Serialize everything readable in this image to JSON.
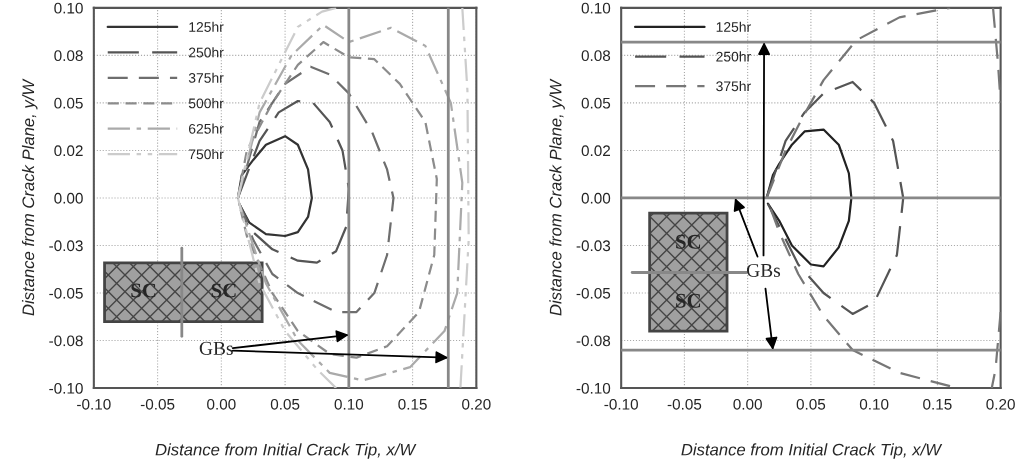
{
  "chart_data": [
    {
      "type": "line",
      "xlabel": "Distance from Initial Crack Tip, x/W",
      "ylabel": "Distance from Crack Plane, y/W",
      "xlim": [
        -0.1,
        0.2
      ],
      "xticks": [
        {
          "value": -0.1,
          "label": "-0.10"
        },
        {
          "value": -0.05,
          "label": "-0.05"
        },
        {
          "value": 0,
          "label": "0.00"
        },
        {
          "value": 0.05,
          "label": "0.05"
        },
        {
          "value": 0.1,
          "label": "0.10"
        },
        {
          "value": 0.15,
          "label": "0.15"
        },
        {
          "value": 0.2,
          "label": "0.20"
        }
      ],
      "ylim": [
        -0.1,
        0.1
      ],
      "yticks": [
        {
          "value": -0.1,
          "label": "-0.10"
        },
        {
          "value": -0.075,
          "label": "-0.08"
        },
        {
          "value": -0.05,
          "label": "-0.05"
        },
        {
          "value": -0.025,
          "label": "-0.03"
        },
        {
          "value": 0,
          "label": "0.00"
        },
        {
          "value": 0.025,
          "label": "0.02"
        },
        {
          "value": 0.05,
          "label": "0.05"
        },
        {
          "value": 0.075,
          "label": "0.08"
        },
        {
          "value": 0.1,
          "label": "0.10"
        }
      ],
      "grid": true,
      "legend": "top left",
      "series": [
        {
          "name": "125hr",
          "color": "#333333",
          "line_style": "solid",
          "x": [
            0.013,
            0.016,
            0.025,
            0.035,
            0.05,
            0.06,
            0.068,
            0.071,
            0.068,
            0.06,
            0.05,
            0.035,
            0.022,
            0.014
          ],
          "values": [
            0,
            0.012,
            0.02,
            0.028,
            0.0325,
            0.028,
            0.015,
            0,
            -0.01,
            -0.018,
            -0.02,
            -0.019,
            -0.013,
            -0.003
          ]
        },
        {
          "name": "250hr",
          "color": "#555555",
          "line_style": "dashed",
          "x": [
            0.013,
            0.03,
            0.045,
            0.06,
            0.072,
            0.085,
            0.095,
            0.1,
            0.098,
            0.09,
            0.075,
            0.06,
            0.04,
            0.025,
            0.014
          ],
          "values": [
            0,
            0.03,
            0.045,
            0.051,
            0.05,
            0.04,
            0.025,
            0.005,
            -0.015,
            -0.028,
            -0.034,
            -0.033,
            -0.027,
            -0.018,
            -0.003
          ]
        },
        {
          "name": "375hr",
          "color": "#6e6e6e",
          "line_style": "dashed",
          "x": [
            0.013,
            0.03,
            0.05,
            0.07,
            0.085,
            0.1,
            0.118,
            0.13,
            0.135,
            0.13,
            0.12,
            0.106,
            0.09,
            0.06,
            0.04,
            0.025,
            0.014
          ],
          "values": [
            0,
            0.04,
            0.06,
            0.069,
            0.065,
            0.055,
            0.035,
            0.015,
            0,
            -0.03,
            -0.05,
            -0.06,
            -0.06,
            -0.05,
            -0.04,
            -0.022,
            -0.003
          ]
        },
        {
          "name": "500hr",
          "color": "#8c8c8c",
          "line_style": "dashed",
          "x": [
            0.013,
            0.02,
            0.04,
            0.06,
            0.08,
            0.1,
            0.12,
            0.14,
            0.16,
            0.169,
            0.167,
            0.155,
            0.13,
            0.106,
            0.085,
            0.06,
            0.04,
            0.02,
            0.014
          ],
          "values": [
            0,
            0.025,
            0.05,
            0.07,
            0.082,
            0.074,
            0.073,
            0.06,
            0.04,
            0.01,
            -0.03,
            -0.06,
            -0.078,
            -0.084,
            -0.082,
            -0.07,
            -0.05,
            -0.02,
            -0.003
          ]
        },
        {
          "name": "625hr",
          "color": "#aaaaaa",
          "line_style": "dashed",
          "x": [
            0.013,
            0.03,
            0.055,
            0.08,
            0.1,
            0.133,
            0.16,
            0.18,
            0.189,
            0.185,
            0.175,
            0.148,
            0.111,
            0.085,
            0.06,
            0.035,
            0.014
          ],
          "values": [
            0,
            0.045,
            0.075,
            0.091,
            0.082,
            0.0895,
            0.08,
            0.05,
            0.008,
            -0.05,
            -0.07,
            -0.089,
            -0.096,
            -0.092,
            -0.075,
            -0.045,
            -0.003
          ]
        },
        {
          "name": "750hr",
          "color": "#cccccc",
          "line_style": "dashed",
          "x": [
            0.013,
            0.03,
            0.06,
            0.079,
            0.09,
            null,
            0.189,
            0.193,
            0.194,
            0.1875,
            null,
            0.09,
            0.075,
            0.05,
            0.03,
            0.013
          ],
          "values": [
            0,
            0.05,
            0.09,
            0.098,
            0.1,
            null,
            0.1,
            0.0565,
            -0.022,
            -0.1,
            null,
            -0.1,
            -0.09,
            -0.07,
            -0.045,
            0
          ]
        }
      ],
      "ref_lines": [
        {
          "axis": "x",
          "value": 0.1,
          "color": "#888888"
        },
        {
          "axis": "x",
          "value": 0.178,
          "color": "#888888"
        }
      ],
      "annotations": [
        "SC",
        "SC",
        {
          "text": "GBs",
          "x": 0.1,
          "y": -0.072
        }
      ]
    },
    {
      "type": "line",
      "xlabel": "Distance from Initial Crack Tip, x/W",
      "ylabel": "Distance from Crack Plane, y/W",
      "xlim": [
        -0.1,
        0.2
      ],
      "xticks": [
        {
          "value": -0.1,
          "label": "-0.10"
        },
        {
          "value": -0.05,
          "label": "-0.05"
        },
        {
          "value": 0,
          "label": "0.00"
        },
        {
          "value": 0.05,
          "label": "0.05"
        },
        {
          "value": 0.1,
          "label": "0.10"
        },
        {
          "value": 0.15,
          "label": "0.15"
        },
        {
          "value": 0.2,
          "label": "0.20"
        }
      ],
      "ylim": [
        -0.1,
        0.1
      ],
      "yticks": [
        {
          "value": -0.1,
          "label": "-0.10"
        },
        {
          "value": -0.075,
          "label": "-0.08"
        },
        {
          "value": -0.05,
          "label": "-0.05"
        },
        {
          "value": -0.025,
          "label": "-0.03"
        },
        {
          "value": 0,
          "label": "0.00"
        },
        {
          "value": 0.025,
          "label": "0.02"
        },
        {
          "value": 0.05,
          "label": "0.05"
        },
        {
          "value": 0.075,
          "label": "0.08"
        },
        {
          "value": 0.1,
          "label": "0.10"
        }
      ],
      "grid": true,
      "legend": "top left",
      "series": [
        {
          "name": "125hr",
          "color": "#222222",
          "line_style": "solid",
          "x": [
            0.015,
            0.02,
            0.025,
            0.035,
            0.045,
            0.06,
            0.072,
            0.08,
            0.082,
            0.08,
            0.072,
            0.06,
            0.05,
            0.035,
            0.025,
            0.016
          ],
          "values": [
            0,
            0.012,
            0.018,
            0.028,
            0.035,
            0.036,
            0.028,
            0.013,
            0,
            -0.012,
            -0.026,
            -0.036,
            -0.035,
            -0.025,
            -0.012,
            -0.003
          ]
        },
        {
          "name": "250hr",
          "color": "#555555",
          "line_style": "dashed",
          "x": [
            0.015,
            0.03,
            0.045,
            0.06,
            0.083,
            0.1,
            0.115,
            0.123,
            0.118,
            0.1,
            0.083,
            0.06,
            0.04,
            0.025,
            0.016
          ],
          "values": [
            0,
            0.03,
            0.045,
            0.055,
            0.061,
            0.05,
            0.03,
            0,
            -0.03,
            -0.055,
            -0.061,
            -0.05,
            -0.035,
            -0.015,
            -0.003
          ]
        },
        {
          "name": "375hr",
          "color": "#777777",
          "line_style": "dashed",
          "x": [
            0.015,
            0.03,
            0.044,
            0.06,
            0.086,
            0.12,
            0.16,
            null,
            0.194,
            0.198,
            0.2,
            null,
            0.2,
            0.196,
            0.193,
            null,
            0.16,
            0.12,
            0.083,
            0.06,
            0.04,
            0.025,
            0.015
          ],
          "values": [
            0,
            0.025,
            0.043,
            0.062,
            0.083,
            0.095,
            0.1,
            null,
            0.1,
            0.07,
            0.05,
            null,
            -0.06,
            -0.09,
            -0.1,
            null,
            -0.099,
            -0.092,
            -0.08,
            -0.062,
            -0.04,
            -0.018,
            0
          ]
        }
      ],
      "ref_lines": [
        {
          "axis": "y",
          "value": 0.082,
          "color": "#888888"
        },
        {
          "axis": "y",
          "value": 0,
          "color": "#888888"
        },
        {
          "axis": "y",
          "value": -0.08,
          "color": "#888888"
        }
      ],
      "annotations": [
        "SC",
        "SC",
        {
          "text": "GBs",
          "x": 0.013,
          "y": 0.082
        }
      ]
    }
  ]
}
